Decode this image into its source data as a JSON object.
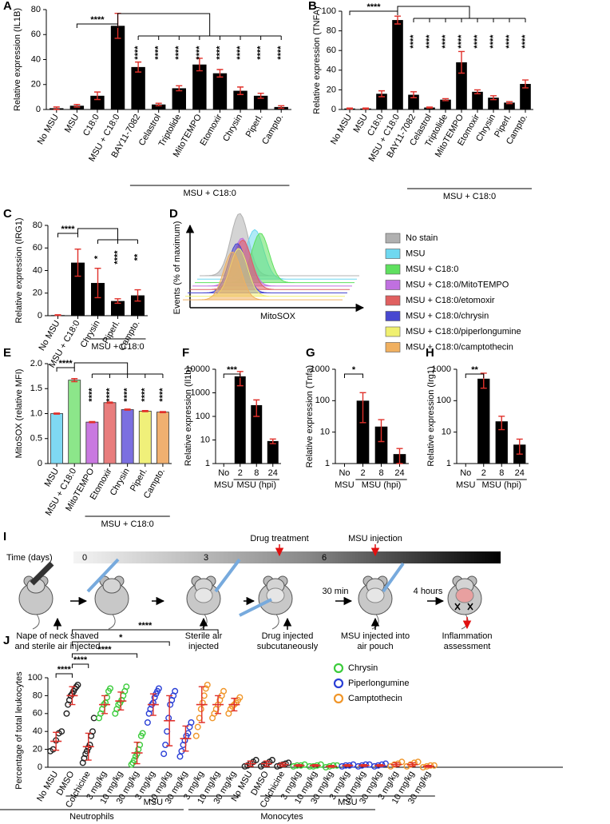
{
  "chart_data": [
    {
      "type": "bar",
      "panel": "A",
      "y_label": "Relative expression (IL1B)",
      "categories": [
        "No MSU",
        "MSU",
        "C18:0",
        "MSU + C18:0",
        "BAY11-7082",
        "Celastrol",
        "Triptolide",
        "MitoTEMPO",
        "Etomoxir",
        "Chrysin",
        "Piperl.",
        "Campto."
      ],
      "values": [
        1,
        3,
        11,
        67,
        34,
        4,
        17,
        36,
        29,
        15,
        11,
        2
      ],
      "errors": [
        1,
        1,
        3,
        10,
        4,
        1,
        2,
        5,
        3,
        3,
        2,
        1
      ],
      "color": "#000000",
      "ylim": [
        0,
        80
      ],
      "yticks": [
        0,
        20,
        40,
        60,
        80
      ],
      "group_label": "MSU + C18:0",
      "significance": [
        "****",
        "****",
        "****",
        "****",
        "****",
        "****",
        "****",
        "****",
        "****"
      ]
    },
    {
      "type": "bar",
      "panel": "B",
      "y_label": "Relative expression (TNFA)",
      "categories": [
        "No MSU",
        "MSU",
        "C18:0",
        "MSU + C18:0",
        "BAY11-7082",
        "Celastrol",
        "Triptolide",
        "MitoTEMPO",
        "Etomoxir",
        "Chrysin",
        "Piperl.",
        "Campto."
      ],
      "values": [
        1,
        1,
        16,
        91,
        15,
        2,
        10,
        48,
        18,
        12,
        7,
        26
      ],
      "errors": [
        0.5,
        0.5,
        3,
        4,
        3,
        0.5,
        1,
        11,
        2,
        2,
        1,
        4
      ],
      "color": "#000000",
      "ylim": [
        0,
        100
      ],
      "yticks": [
        0,
        20,
        40,
        60,
        80,
        100
      ],
      "group_label": "MSU + C18:0",
      "significance": [
        "****",
        "****",
        "****",
        "****",
        "****",
        "****",
        "****",
        "****",
        "****"
      ]
    },
    {
      "type": "bar",
      "panel": "C",
      "y_label": "Relative expression (IRG1)",
      "categories": [
        "No MSU",
        "MSU + C18:0",
        "Chrysin",
        "Piperl.",
        "Campto."
      ],
      "values": [
        0.5,
        47,
        29,
        13,
        18
      ],
      "errors": [
        0.3,
        12,
        13,
        2,
        5
      ],
      "color": "#000000",
      "ylim": [
        0,
        80
      ],
      "yticks": [
        0,
        20,
        40,
        60,
        80
      ],
      "group_label": "MSU + C18:0",
      "significance": [
        "****",
        "*",
        "****",
        "**"
      ]
    },
    {
      "type": "density",
      "panel": "D",
      "y_label": "Events (% of maximum)",
      "x_label": "MitoSOX",
      "series": [
        {
          "name": "No stain",
          "color": "#b0b0b0"
        },
        {
          "name": "MSU",
          "color": "#6fd8f0"
        },
        {
          "name": "MSU + C18:0",
          "color": "#5fe05f"
        },
        {
          "name": "MSU + C18:0/MitoTEMPO",
          "color": "#c070e0"
        },
        {
          "name": "MSU + C18:0/etomoxir",
          "color": "#e06060"
        },
        {
          "name": "MSU + C18:0/chrysin",
          "color": "#4848d0"
        },
        {
          "name": "MSU + C18:0/piperlongumine",
          "color": "#f0f070"
        },
        {
          "name": "MSU + C18:0/camptothecin",
          "color": "#f0b060"
        }
      ]
    },
    {
      "type": "bar",
      "panel": "E",
      "y_label": "MitoSOX (relative MFI)",
      "categories": [
        "MSU",
        "MSU + C18:0",
        "MitoTEMPO",
        "Etomoxir",
        "Chrysin",
        "Piperl.",
        "Campto."
      ],
      "values": [
        1.0,
        1.67,
        0.83,
        1.22,
        1.08,
        1.05,
        1.03
      ],
      "errors": [
        0.01,
        0.03,
        0.01,
        0.01,
        0.01,
        0.01,
        0.01
      ],
      "colors": [
        "#7fd8f2",
        "#8ce68a",
        "#c978e0",
        "#e87d7d",
        "#7b6fe0",
        "#f0f07a",
        "#f0b070"
      ],
      "ylim": [
        0,
        2
      ],
      "yticks": [
        0,
        0.5,
        {
          "value": 1,
          "label": "1.0"
        },
        1.5,
        {
          "value": 2,
          "label": "2.0"
        }
      ],
      "group_label": "MSU + C18:0",
      "significance": [
        "****",
        "****",
        "****",
        "****",
        "****",
        "****"
      ]
    },
    {
      "type": "bar",
      "panel": "F",
      "y_label": "Relative expression (Il1b)",
      "log": true,
      "categories": [
        "No",
        "2",
        "8",
        "24"
      ],
      "values": [
        null,
        5000,
        300,
        9
      ],
      "errors": [
        null,
        3000,
        200,
        2
      ],
      "color": "#000000",
      "ylim": [
        1,
        10000
      ],
      "yticks": [
        1,
        10,
        100,
        1000,
        10000
      ],
      "group_labels": [
        "MSU",
        "MSU (hpi)"
      ],
      "significance": [
        "***"
      ]
    },
    {
      "type": "bar",
      "panel": "G",
      "y_label": "Relative expression (Tnfa)",
      "log": true,
      "categories": [
        "No",
        "2",
        "8",
        "24"
      ],
      "values": [
        null,
        100,
        15,
        2
      ],
      "errors": [
        null,
        80,
        10,
        1
      ],
      "color": "#000000",
      "ylim": [
        1,
        1000
      ],
      "yticks": [
        1,
        10,
        100,
        1000
      ],
      "group_labels": [
        "MSU",
        "MSU (hpi)"
      ],
      "significance": [
        "*"
      ]
    },
    {
      "type": "bar",
      "panel": "H",
      "y_label": "Relative expression (Irg1)",
      "log": true,
      "categories": [
        "No",
        "2",
        "8",
        "24"
      ],
      "values": [
        null,
        500,
        22,
        4
      ],
      "errors": [
        null,
        250,
        10,
        2
      ],
      "color": "#000000",
      "ylim": [
        1,
        1000
      ],
      "yticks": [
        1,
        10,
        100,
        1000
      ],
      "group_labels": [
        "MSU",
        "MSU (hpi)"
      ],
      "significance": [
        "**"
      ]
    },
    {
      "type": "strip",
      "panel": "J",
      "y_label": "Percentage of total leukocytes",
      "categories": [
        "No MSU",
        "DMSO",
        "Colchicine",
        "3 mg/kg",
        "10 mg/kg",
        "30 mg/kg",
        "3 mg/kg",
        "10 mg/kg",
        "30 mg/kg",
        "3 mg/kg",
        "10 mg/kg",
        "30 mg/kg",
        "No MSU",
        "DMSO",
        "Colchicine",
        "3 mg/kg",
        "10 mg/kg",
        "30 mg/kg",
        "3 mg/kg",
        "10 mg/kg",
        "30 mg/kg",
        "3 mg/kg",
        "10 mg/kg",
        "30 mg/kg"
      ],
      "groups": [
        {
          "color": "#222222",
          "values": [
            18,
            20,
            30,
            38,
            40
          ],
          "mean": 29,
          "error": 10
        },
        {
          "color": "#222222",
          "values": [
            60,
            70,
            75,
            80,
            82,
            85,
            88,
            90,
            92
          ],
          "mean": 80,
          "error": 10
        },
        {
          "color": "#222222",
          "values": [
            5,
            10,
            15,
            18,
            22,
            25,
            35,
            40,
            55
          ],
          "mean": 23,
          "error": 15
        },
        {
          "color": "#3ccc3c",
          "values": [
            55,
            60,
            65,
            70,
            72,
            78,
            85,
            88
          ],
          "mean": 70,
          "error": 10
        },
        {
          "color": "#3ccc3c",
          "values": [
            60,
            65,
            70,
            72,
            75,
            80,
            85,
            90
          ],
          "mean": 74,
          "error": 10
        },
        {
          "color": "#3ccc3c",
          "values": [
            3,
            5,
            8,
            12,
            15,
            20,
            25,
            35,
            38
          ],
          "mean": 16,
          "error": 12
        },
        {
          "color": "#2a3fd6",
          "values": [
            50,
            60,
            65,
            70,
            72,
            78,
            82,
            85,
            88
          ],
          "mean": 70,
          "error": 12
        },
        {
          "color": "#2a3fd6",
          "values": [
            15,
            25,
            40,
            55,
            70,
            75,
            80,
            85
          ],
          "mean": 52,
          "error": 28
        },
        {
          "color": "#2a3fd6",
          "values": [
            12,
            18,
            25,
            30,
            35,
            38,
            45,
            50
          ],
          "mean": 32,
          "error": 14
        },
        {
          "color": "#f0962a",
          "values": [
            35,
            45,
            55,
            65,
            72,
            80,
            88,
            92
          ],
          "mean": 70,
          "error": 20
        },
        {
          "color": "#f0962a",
          "values": [
            55,
            60,
            65,
            70,
            75,
            80,
            85
          ],
          "mean": 70,
          "error": 10
        },
        {
          "color": "#f0962a",
          "values": [
            60,
            65,
            68,
            70,
            72,
            75,
            78
          ],
          "mean": 70,
          "error": 7
        },
        {
          "color": "#222222",
          "values": [
            1,
            2,
            4,
            6,
            8
          ],
          "mean": 4,
          "error": 3
        },
        {
          "color": "#222222",
          "values": [
            1,
            3,
            4,
            6,
            8
          ],
          "mean": 4,
          "error": 3
        },
        {
          "color": "#222222",
          "values": [
            1,
            2,
            3,
            4,
            5
          ],
          "mean": 3,
          "error": 2
        },
        {
          "color": "#3ccc3c",
          "values": [
            1,
            2,
            2,
            3
          ],
          "mean": 2,
          "error": 1
        },
        {
          "color": "#3ccc3c",
          "values": [
            1,
            1,
            2,
            3
          ],
          "mean": 2,
          "error": 1
        },
        {
          "color": "#3ccc3c",
          "values": [
            0,
            1,
            2,
            2
          ],
          "mean": 1,
          "error": 1
        },
        {
          "color": "#2a3fd6",
          "values": [
            1,
            2,
            2,
            3
          ],
          "mean": 2,
          "error": 1
        },
        {
          "color": "#2a3fd6",
          "values": [
            1,
            2,
            3,
            3
          ],
          "mean": 2,
          "error": 1
        },
        {
          "color": "#2a3fd6",
          "values": [
            1,
            2,
            3,
            4
          ],
          "mean": 2,
          "error": 1
        },
        {
          "color": "#f0962a",
          "values": [
            1,
            3,
            4,
            6
          ],
          "mean": 3,
          "error": 2
        },
        {
          "color": "#f0962a",
          "values": [
            1,
            3,
            5,
            6
          ],
          "mean": 3,
          "error": 2
        },
        {
          "color": "#f0962a",
          "values": [
            0,
            1,
            2,
            2
          ],
          "mean": 1,
          "error": 1
        }
      ],
      "series": [
        {
          "name": "Chrysin",
          "color": "#3ccc3c"
        },
        {
          "name": "Piperlongumine",
          "color": "#2a3fd6"
        },
        {
          "name": "Camptothecin",
          "color": "#f0962a"
        }
      ],
      "ylim": [
        0,
        100
      ],
      "yticks": [
        0,
        20,
        40,
        60,
        80,
        100
      ],
      "group_labels": [
        "MSU",
        "MSU"
      ],
      "cell_labels": [
        "Neutrophils",
        "Monocytes"
      ],
      "significance": [
        "****",
        "*",
        "****",
        "****",
        "****"
      ]
    }
  ],
  "diagram": {
    "panel": "I",
    "time_label": "Time (days)",
    "days": [
      "0",
      "3",
      "6"
    ],
    "events": [
      "Drug treatment",
      "MSU injection"
    ],
    "intervals": [
      "30 min",
      "4 hours"
    ],
    "steps": [
      [
        "Nape of neck shaved",
        "and sterile air injected"
      ],
      [
        "Sterile air",
        "injected"
      ],
      [
        "Drug injected",
        "subcutaneously"
      ],
      [
        "MSU injected into",
        "air pouch"
      ],
      [
        "Inflammation",
        "assessment"
      ]
    ]
  }
}
